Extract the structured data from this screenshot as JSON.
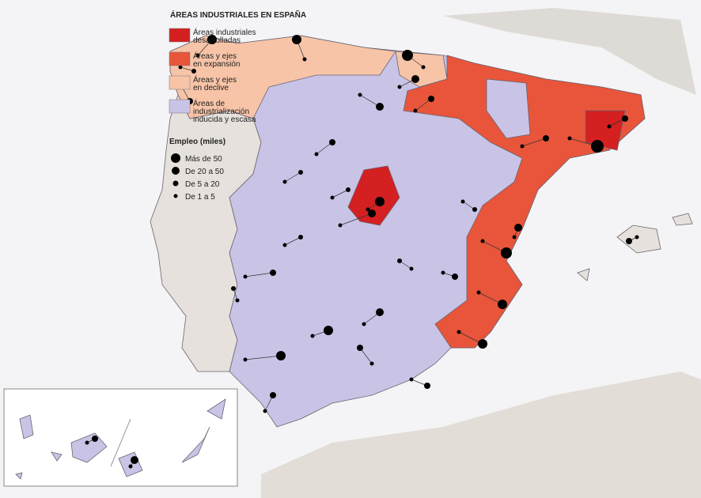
{
  "title": "ÁREAS INDUSTRIALES EN ESPAÑA",
  "legend": {
    "areas": [
      {
        "label_lines": [
          "Áreas industriales",
          "desarrolladas"
        ],
        "color": "#d42020"
      },
      {
        "label_lines": [
          "Áreas y ejes",
          "en expansión"
        ],
        "color": "#e8553a"
      },
      {
        "label_lines": [
          "Áreas y ejes",
          "en declive"
        ],
        "color": "#f7c4a8"
      },
      {
        "label_lines": [
          "Áreas de",
          "industrialización",
          "inducida y escasa"
        ],
        "color": "#c9c3e6"
      }
    ],
    "employment_title": "Empleo (miles)",
    "employment": [
      "Más de 50",
      "De 20 a 50",
      "De 5 a 20",
      "De 1 a 5"
    ]
  }
}
